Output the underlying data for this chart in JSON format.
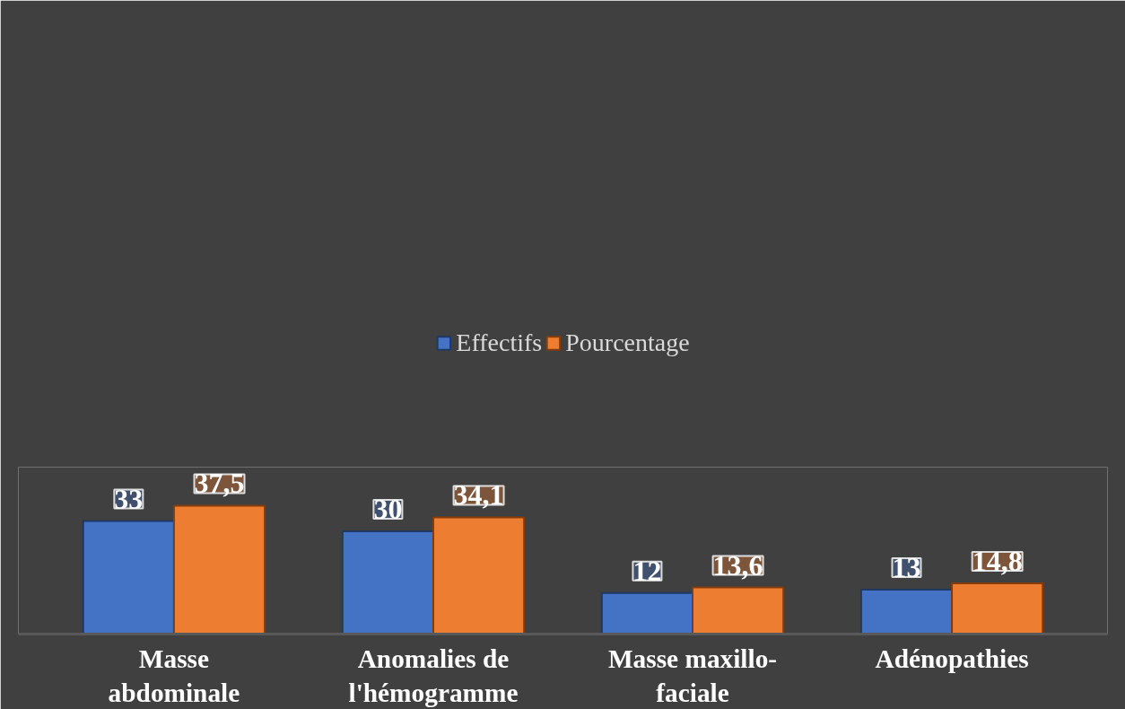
{
  "chart_data": {
    "type": "bar",
    "categories": [
      "Masse abdominale",
      "Anomalies de l'hémogramme",
      "Masse maxillo-faciale",
      "Adénopathies"
    ],
    "series": [
      {
        "name": "Effectifs",
        "color": "#4472c4",
        "values": [
          33,
          30,
          12,
          13
        ],
        "value_labels": [
          "33",
          "30",
          "12",
          "13"
        ]
      },
      {
        "name": "Pourcentage",
        "color": "#ed7d31",
        "values": [
          37.5,
          34.1,
          13.6,
          14.8
        ],
        "value_labels": [
          "37,5",
          "34,1",
          "13,6",
          "14,8"
        ]
      }
    ],
    "legend": "top",
    "grid": false
  }
}
